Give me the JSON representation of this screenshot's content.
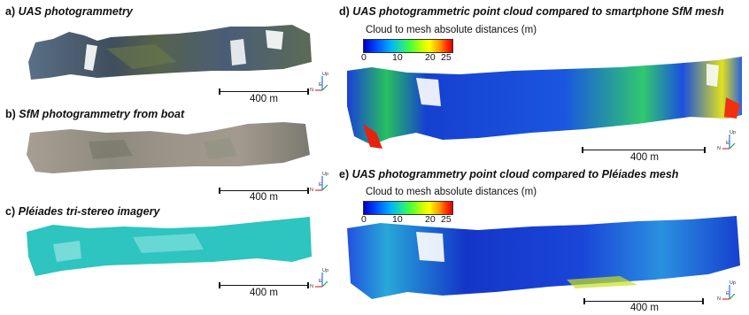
{
  "panels": {
    "a": {
      "letter": "a)",
      "title": "UAS photogrammetry",
      "scale": "400 m"
    },
    "b": {
      "letter": "b)",
      "title": "SfM photogrammetry from boat",
      "scale": "400 m"
    },
    "c": {
      "letter": "c)",
      "title": "Pléiades tri-stereo imagery",
      "scale": "400 m"
    },
    "d": {
      "letter": "d)",
      "title": "UAS photogrammetric point cloud compared to smartphone SfM mesh",
      "colorbar_title": "Cloud to mesh absolute distances (m)",
      "ticks": [
        "0",
        "10",
        "20",
        "25"
      ],
      "scale": "400 m"
    },
    "e": {
      "letter": "e)",
      "title": "UAS photogrammetry point cloud compared to Pléiades mesh",
      "colorbar_title": "Cloud to mesh absolute distances (m)",
      "ticks": [
        "0",
        "10",
        "20",
        "25"
      ],
      "scale": "400 m"
    }
  },
  "axes_labels": {
    "up": "Up",
    "east": "E",
    "north": "N"
  }
}
